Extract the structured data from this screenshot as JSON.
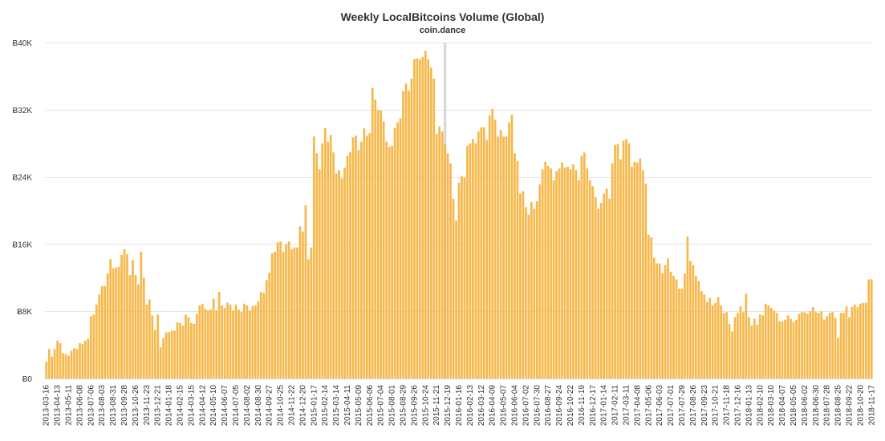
{
  "chart_data": {
    "type": "bar",
    "title": "Weekly LocalBitcoins Volume (Global)",
    "subtitle": "coin.dance",
    "xlabel": "",
    "ylabel": "",
    "currency_symbol": "Ƀ",
    "ylim": [
      0,
      40000
    ],
    "yticks": [
      0,
      8000,
      16000,
      24000,
      32000,
      40000
    ],
    "ytick_labels": [
      "Ƀ0",
      "Ƀ8K",
      "Ƀ16K",
      "Ƀ24K",
      "Ƀ32K",
      "Ƀ40K"
    ],
    "grid": true,
    "bar_color": "#f7b84b",
    "highlight_color": "#d9d9d9",
    "highlight_label_index": 35,
    "xtick_labels": [
      "2013-03-16",
      "2013-04-13",
      "2013-05-11",
      "2013-06-08",
      "2013-07-06",
      "2013-08-03",
      "2013-08-31",
      "2013-09-28",
      "2013-10-26",
      "2013-11-23",
      "2013-12-21",
      "2014-01-18",
      "2014-02-15",
      "2014-03-15",
      "2014-04-12",
      "2014-05-10",
      "2014-06-07",
      "2014-07-05",
      "2014-08-02",
      "2014-08-30",
      "2014-09-27",
      "2014-10-25",
      "2014-11-22",
      "2014-12-20",
      "2015-01-17",
      "2015-02-14",
      "2015-03-14",
      "2015-04-11",
      "2015-05-09",
      "2015-06-06",
      "2015-07-04",
      "2015-08-01",
      "2015-08-29",
      "2015-09-26",
      "2015-10-24",
      "2015-11-21",
      "2015-12-19",
      "2016-01-16",
      "2016-02-13",
      "2016-03-12",
      "2016-04-09",
      "2016-05-07",
      "2016-06-04",
      "2016-07-02",
      "2016-07-30",
      "2016-08-27",
      "2016-09-24",
      "2016-10-22",
      "2016-11-19",
      "2016-12-17",
      "2017-01-14",
      "2017-02-11",
      "2017-03-11",
      "2017-04-08",
      "2017-05-06",
      "2017-06-03",
      "2017-07-01",
      "2017-07-29",
      "2017-08-26",
      "2017-09-23",
      "2017-10-21",
      "2017-11-18",
      "2017-12-16",
      "2018-01-13",
      "2018-02-10",
      "2018-03-10",
      "2018-04-07",
      "2018-05-05",
      "2018-06-02",
      "2018-06-30",
      "2018-07-28",
      "2018-08-25",
      "2018-09-22",
      "2018-10-20",
      "2018-11-17"
    ],
    "values": [
      2000,
      3500,
      2600,
      3500,
      4500,
      4200,
      3000,
      2900,
      2700,
      3300,
      3600,
      3500,
      4200,
      4100,
      4500,
      4700,
      7400,
      7600,
      8800,
      10000,
      11000,
      11000,
      12500,
      14200,
      13100,
      13200,
      13300,
      14700,
      15400,
      14800,
      12300,
      14100,
      12300,
      11200,
      15100,
      12000,
      8800,
      9400,
      7500,
      5800,
      7600,
      3700,
      4800,
      5500,
      5500,
      5700,
      5700,
      6700,
      6600,
      6300,
      7600,
      7300,
      6600,
      6500,
      7700,
      8700,
      8900,
      8300,
      8100,
      8200,
      9500,
      8100,
      10300,
      8700,
      8400,
      9000,
      8800,
      8100,
      8800,
      8200,
      7900,
      8900,
      8700,
      8100,
      8600,
      8700,
      9200,
      10300,
      10200,
      11700,
      12600,
      14900,
      15100,
      16200,
      16300,
      15100,
      16000,
      16300,
      15400,
      15600,
      15600,
      18100,
      17500,
      20600,
      14200,
      15600,
      28800,
      26800,
      24900,
      28000,
      29800,
      28200,
      29000,
      26900,
      24400,
      24800,
      23800,
      25100,
      26500,
      26900,
      28700,
      28900,
      27200,
      28200,
      29800,
      28900,
      29200,
      34600,
      33200,
      32000,
      31900,
      30600,
      28200,
      27600,
      27700,
      29800,
      30500,
      31000,
      34200,
      35100,
      34300,
      35700,
      38000,
      38100,
      38000,
      38300,
      39000,
      38000,
      37000,
      35700,
      29100,
      30000,
      29400,
      27900,
      26800,
      25600,
      21400,
      18800,
      23300,
      24100,
      23900,
      27700,
      28000,
      28500,
      28000,
      29400,
      29900,
      29900,
      28400,
      31300,
      32100,
      30800,
      28800,
      29600,
      28800,
      28800,
      30500,
      31400,
      26800,
      25900,
      22000,
      22300,
      20400,
      19500,
      21000,
      20200,
      21100,
      23100,
      24900,
      25800,
      25300,
      25000,
      23600,
      24700,
      25000,
      25700,
      25100,
      25200,
      24900,
      25500,
      24800,
      23600,
      26500,
      26900,
      25000,
      23600,
      22900,
      21600,
      20200,
      20900,
      22000,
      22600,
      21400,
      25600,
      27800,
      27900,
      26100,
      28300,
      28500,
      28000,
      25200,
      25800,
      25700,
      26200,
      24800,
      23200,
      17100,
      16800,
      14400,
      13700,
      13700,
      12500,
      13500,
      14300,
      12700,
      12200,
      11800,
      10700,
      10700,
      12500,
      16900,
      14000,
      13500,
      12200,
      11600,
      10400,
      10000,
      9100,
      9600,
      8700,
      9000,
      9700,
      8700,
      7800,
      7900,
      6500,
      5600,
      7300,
      7800,
      8600,
      7900,
      10100,
      7300,
      6300,
      7100,
      6400,
      7600,
      7500,
      8900,
      8700,
      8400,
      8100,
      7800,
      6800,
      6800,
      7000,
      7500,
      7100,
      6700,
      7000,
      7700,
      7900,
      7900,
      7700,
      8000,
      8500,
      7900,
      7800,
      8000,
      7000,
      7400,
      7800,
      7900,
      7200,
      4800,
      7800,
      7800,
      8600,
      7300,
      8500,
      8800,
      8500,
      8900,
      9000,
      9000,
      11800,
      11800
    ]
  }
}
